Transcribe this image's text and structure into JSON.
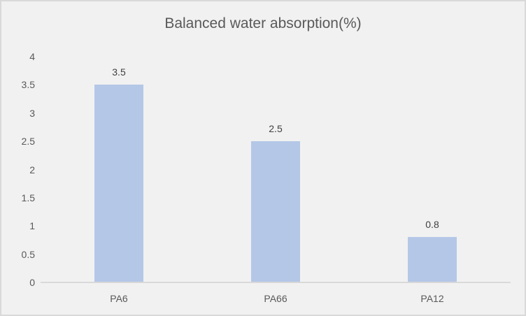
{
  "chart_data": {
    "type": "bar",
    "title": "Balanced water absorption(%)",
    "categories": [
      "PA6",
      "PA66",
      "PA12"
    ],
    "values": [
      3.5,
      2.5,
      0.8
    ],
    "data_labels": [
      "3.5",
      "2.5",
      "0.8"
    ],
    "xlabel": "",
    "ylabel": "",
    "ylim": [
      0,
      4
    ],
    "ytick_step": 0.5,
    "ytick_labels": [
      "0",
      "0.5",
      "1",
      "1.5",
      "2",
      "2.5",
      "3",
      "3.5",
      "4"
    ],
    "grid": false,
    "legend": "none",
    "colors": {
      "bar_fill": "#b4c7e7",
      "background": "#f1f1f1",
      "frame_border": "#d9d9d9",
      "axis_line": "#d9d9d9",
      "title_text": "#595959",
      "tick_text": "#595959",
      "data_label_text": "#404040"
    }
  }
}
